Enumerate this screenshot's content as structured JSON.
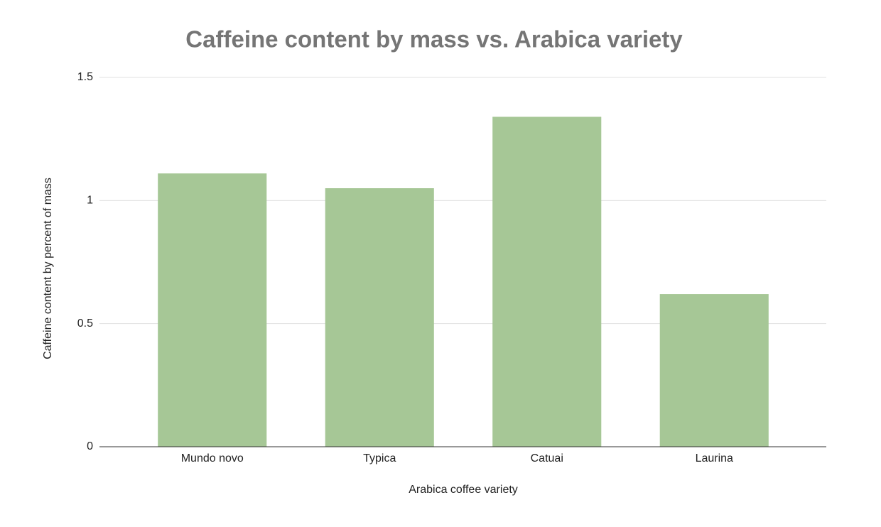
{
  "chart_data": {
    "type": "bar",
    "title": "Caffeine content by mass vs. Arabica variety",
    "x_label": "Arabica coffee variety",
    "y_label": "Caffeine content by percent of mass",
    "categories": [
      "Mundo novo",
      "Typica",
      "Catuai",
      "Laurina"
    ],
    "values": [
      1.11,
      1.05,
      1.34,
      0.62
    ],
    "color": "#a6c796",
    "ylim": [
      0,
      1.5
    ],
    "yticks": [
      0,
      0.5,
      1,
      1.5
    ],
    "grid": true
  }
}
